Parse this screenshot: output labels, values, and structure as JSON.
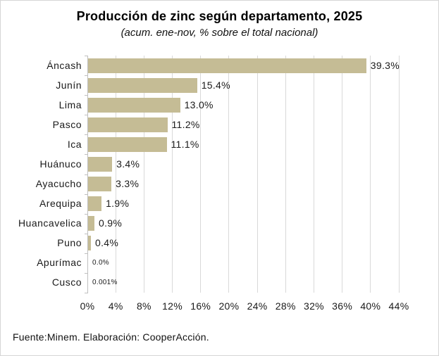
{
  "header": {
    "title": "Producción de zinc según departamento, 2025",
    "subtitle": "(acum. ene-nov, % sobre el total nacional)"
  },
  "footer": {
    "source": "Fuente:Minem. Elaboración: CooperAcción."
  },
  "chart_data": {
    "type": "bar",
    "orientation": "horizontal",
    "title": "Producción de zinc según departamento, 2025",
    "subtitle": "(acum. ene-nov, % sobre el total nacional)",
    "categories": [
      "Áncash",
      "Junín",
      "Lima",
      "Pasco",
      "Ica",
      "Huánuco",
      "Ayacucho",
      "Arequipa",
      "Huancavelica",
      "Puno",
      "Apurímac",
      "Cusco"
    ],
    "values": [
      39.3,
      15.4,
      13.0,
      11.2,
      11.1,
      3.4,
      3.3,
      1.9,
      0.9,
      0.4,
      0.0,
      0.001
    ],
    "data_labels": [
      "39.3%",
      "15.4%",
      "13.0%",
      "11.2%",
      "11.1%",
      "3.4%",
      "3.3%",
      "1.9%",
      "0.9%",
      "0.4%",
      "0.0%",
      "0.001%"
    ],
    "small_label_indices": [
      10,
      11
    ],
    "x_ticks": [
      "0%",
      "4%",
      "8%",
      "12%",
      "16%",
      "20%",
      "24%",
      "28%",
      "32%",
      "36%",
      "40%",
      "44%"
    ],
    "xlim": [
      0,
      44
    ],
    "grid": "vertical",
    "legend": "none",
    "bar_color": "#c5bc95",
    "gridline_color": "#d9d9d9",
    "axis_color": "#bfbfbf"
  }
}
